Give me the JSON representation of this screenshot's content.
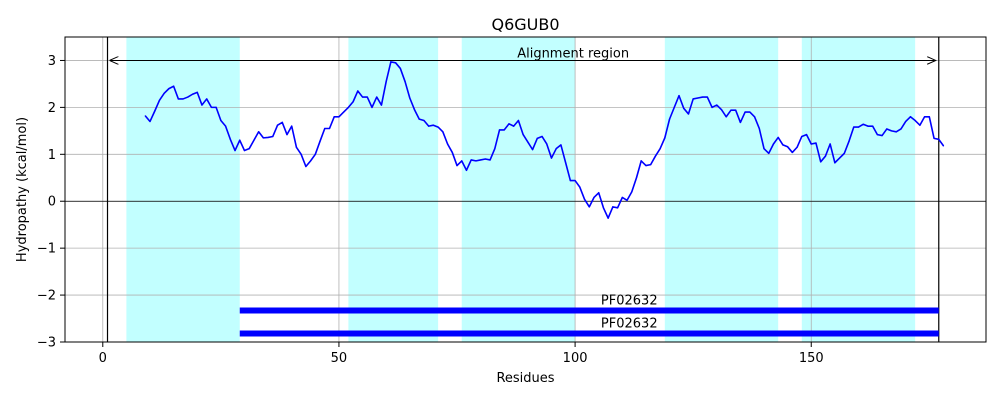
{
  "chart_data": {
    "type": "line",
    "title": "Q6GUB0",
    "xlabel": "Residues",
    "ylabel": "Hydropathy (kcal/mol)",
    "xlim": [
      -8,
      187
    ],
    "ylim": [
      -3,
      3.5
    ],
    "xticks": [
      0,
      50,
      100,
      150
    ],
    "yticks": [
      -3,
      -2,
      -1,
      0,
      1,
      2,
      3
    ],
    "grid": true,
    "colors": {
      "line": "#0000ff",
      "band": "#c2ffff",
      "domain_bar": "#0000ff",
      "grid": "#b0b0b0",
      "axis": "#000000"
    },
    "bands": [
      [
        5,
        29
      ],
      [
        52,
        71
      ],
      [
        76,
        100
      ],
      [
        119,
        143
      ],
      [
        148,
        172
      ]
    ],
    "vlines": [
      1,
      177
    ],
    "alignment_region": {
      "label": "Alignment region",
      "start": 1,
      "end": 177,
      "y": 3.0
    },
    "domains": [
      {
        "label": "PF02632",
        "start": 29,
        "end": 177,
        "y": -2.33
      },
      {
        "label": "PF02632",
        "start": 29,
        "end": 177,
        "y": -2.82
      }
    ],
    "series": [
      {
        "x": [
          9,
          10,
          11,
          12,
          13,
          14,
          15,
          16,
          17,
          18,
          19,
          20,
          21,
          22,
          23,
          24,
          25,
          26,
          27,
          28,
          29,
          30,
          31,
          32,
          33,
          34,
          35,
          36,
          37,
          38,
          39,
          40,
          41,
          42,
          43,
          44,
          45,
          46,
          47,
          48,
          49,
          50,
          51,
          52,
          53,
          54,
          55,
          56,
          57,
          58,
          59,
          60,
          61,
          62,
          63,
          64,
          65,
          66,
          67,
          68,
          69,
          70,
          71,
          72,
          73,
          74,
          75,
          76,
          77,
          78,
          79,
          80,
          81,
          82,
          83,
          84,
          85,
          86,
          87,
          88,
          89,
          90,
          91,
          92,
          93,
          94,
          95,
          96,
          97,
          98,
          99,
          100,
          101,
          102,
          103,
          104,
          105,
          106,
          107,
          108,
          109,
          110,
          111,
          112,
          113,
          114,
          115,
          116,
          117,
          118,
          119,
          120,
          121,
          122,
          123,
          124,
          125,
          126,
          127,
          128,
          129,
          130,
          131,
          132,
          133,
          134,
          135,
          136,
          137,
          138,
          139,
          140,
          141,
          142,
          143,
          144,
          145,
          146,
          147,
          148,
          149,
          150,
          151,
          152,
          153,
          154,
          155,
          156,
          157,
          158,
          159,
          160,
          161,
          162,
          163,
          164,
          165,
          166,
          167,
          168,
          169,
          170,
          171,
          172,
          173,
          174,
          175,
          176,
          177,
          178
        ],
        "values": [
          1.82,
          1.7,
          1.92,
          2.15,
          2.3,
          2.4,
          2.45,
          2.18,
          2.18,
          2.22,
          2.28,
          2.32,
          2.05,
          2.18,
          2.0,
          2.0,
          1.72,
          1.6,
          1.32,
          1.08,
          1.3,
          1.08,
          1.12,
          1.3,
          1.48,
          1.35,
          1.36,
          1.38,
          1.62,
          1.68,
          1.42,
          1.6,
          1.15,
          1.0,
          0.74,
          0.86,
          1.0,
          1.28,
          1.55,
          1.55,
          1.8,
          1.8,
          1.9,
          2.0,
          2.12,
          2.35,
          2.22,
          2.22,
          2.0,
          2.22,
          2.05,
          2.55,
          2.97,
          2.95,
          2.83,
          2.55,
          2.2,
          1.95,
          1.75,
          1.72,
          1.6,
          1.62,
          1.58,
          1.48,
          1.22,
          1.04,
          0.76,
          0.86,
          0.66,
          0.88,
          0.86,
          0.88,
          0.9,
          0.88,
          1.12,
          1.52,
          1.52,
          1.65,
          1.6,
          1.72,
          1.42,
          1.26,
          1.1,
          1.34,
          1.38,
          1.22,
          0.92,
          1.12,
          1.2,
          0.82,
          0.44,
          0.44,
          0.3,
          0.04,
          -0.12,
          0.08,
          0.18,
          -0.14,
          -0.36,
          -0.12,
          -0.14,
          0.08,
          0.02,
          0.2,
          0.5,
          0.86,
          0.76,
          0.78,
          0.96,
          1.12,
          1.35,
          1.75,
          2.0,
          2.25,
          1.98,
          1.86,
          2.18,
          2.2,
          2.22,
          2.22,
          2.0,
          2.05,
          1.95,
          1.8,
          1.94,
          1.94,
          1.68,
          1.9,
          1.9,
          1.8,
          1.55,
          1.12,
          1.02,
          1.22,
          1.36,
          1.2,
          1.16,
          1.04,
          1.15,
          1.38,
          1.42,
          1.22,
          1.24,
          0.84,
          0.96,
          1.22,
          0.82,
          0.92,
          1.02,
          1.28,
          1.58,
          1.58,
          1.64,
          1.6,
          1.6,
          1.42,
          1.4,
          1.54,
          1.5,
          1.48,
          1.54,
          1.7,
          1.8,
          1.72,
          1.62,
          1.8,
          1.8,
          1.34,
          1.32,
          1.18
        ]
      }
    ]
  }
}
